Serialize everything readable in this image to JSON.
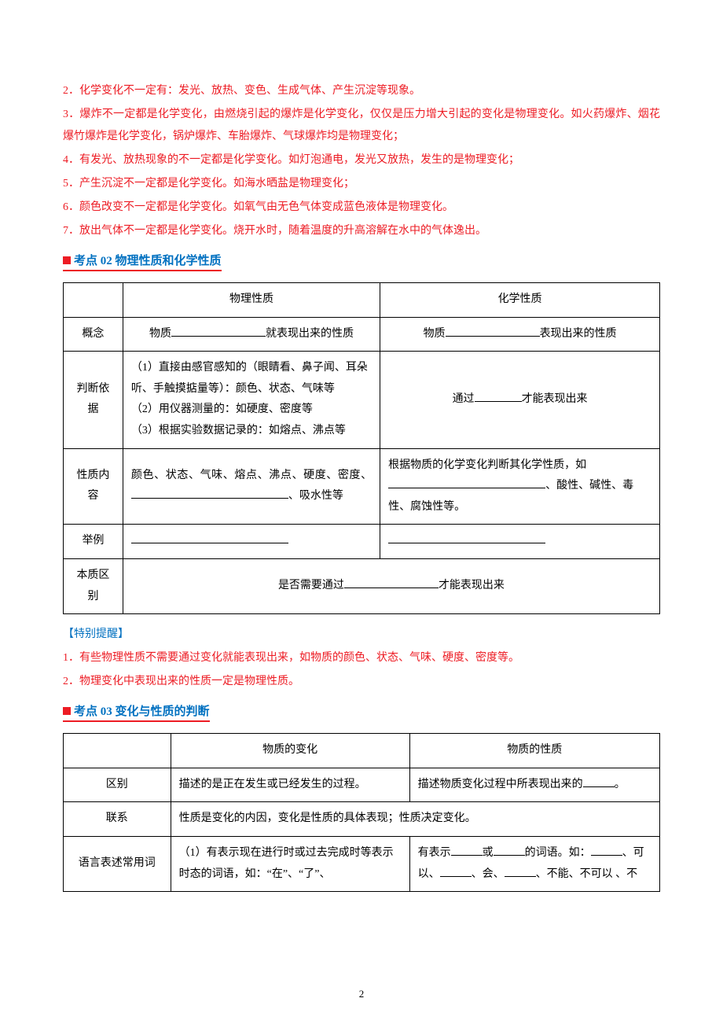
{
  "points": {
    "p2": "2．化学变化不一定有：发光、放热、变色、生成气体、产生沉淀等现象。",
    "p3": "3．爆炸不一定都是化学变化，由燃烧引起的爆炸是化学变化，仅仅是压力增大引起的变化是物理变化。如火药爆炸、烟花爆竹爆炸是化学变化，锅炉爆炸、车胎爆炸、气球爆炸均是物理变化；",
    "p4": "4．有发光、放热现象的不一定都是化学变化。如灯泡通电，发光又放热，发生的是物理变化；",
    "p5": "5．产生沉淀不一定都是化学变化。如海水晒盐是物理变化；",
    "p6": "6．颜色改变不一定都是化学变化。如氧气由无色气体变成蓝色液体是物理变化。",
    "p7": "7．放出气体不一定都是化学变化。烧开水时，随着温度的升高溶解在水中的气体逸出。"
  },
  "section2": {
    "heading": "考点 02 物理性质和化学性质",
    "table": {
      "h_phys": "物理性质",
      "h_chem": "化学性质",
      "r1_label": "概念",
      "r1_phys_a": "物质",
      "r1_phys_b": "就表现出来的性质",
      "r1_chem_a": "物质",
      "r1_chem_b": "表现出来的性质",
      "r2_label": "判断依据",
      "r2_phys_1": "（1）直接由感官感知的（眼睛看、鼻子闻、耳朵听、手触摸掂量等）：颜色、状态、气味等",
      "r2_phys_2": "（2）用仪器测量的：如硬度、密度等",
      "r2_phys_3": "（3）根据实验数据记录的：如熔点、沸点等",
      "r2_chem_a": "通过",
      "r2_chem_b": "才能表现出来",
      "r3_label": "性质内容",
      "r3_phys_a": "颜色、状态、气味、熔点、沸点、硬度、密度、",
      "r3_phys_b": "、吸水性等",
      "r3_chem_a": "根据物质的化学变化判断其化学性质，如",
      "r3_chem_b": "、酸性、碱性、毒性、腐蚀性等。",
      "r4_label": "举例",
      "r5_label": "本质区别",
      "r5_a": "是否需要通过",
      "r5_b": "才能表现出来"
    },
    "tip_label": "【特别提醒】",
    "tip1": "1．有些物理性质不需要通过变化就能表现出来，如物质的颜色、状态、气味、硬度、密度等。",
    "tip2": "2．物理变化中表现出来的性质一定是物理性质。"
  },
  "section3": {
    "heading": "考点 03  变化与性质的判断",
    "table": {
      "h_change": "物质的变化",
      "h_prop": "物质的性质",
      "r1_label": "区别",
      "r1_change": "描述的是正在发生或已经发生的过程。",
      "r1_prop_a": "描述物质变化过程中所表现出来的",
      "r1_prop_b": "。",
      "r2_label": "联系",
      "r2_merged": "性质是变化的内因，变化是性质的具体表现；性质决定变化。",
      "r3_label": "语言表述常用词",
      "r3_change": "（1）有表示现在进行时或过去完成时等表示时态的词语，如：“在”、“了”、",
      "r3_prop_a": "有表示",
      "r3_prop_b": "或",
      "r3_prop_c": "的词语。如：",
      "r3_prop_d": "、可以、",
      "r3_prop_e": "、会、",
      "r3_prop_f": "、不能、不可以 、不"
    }
  },
  "pageno": "2"
}
